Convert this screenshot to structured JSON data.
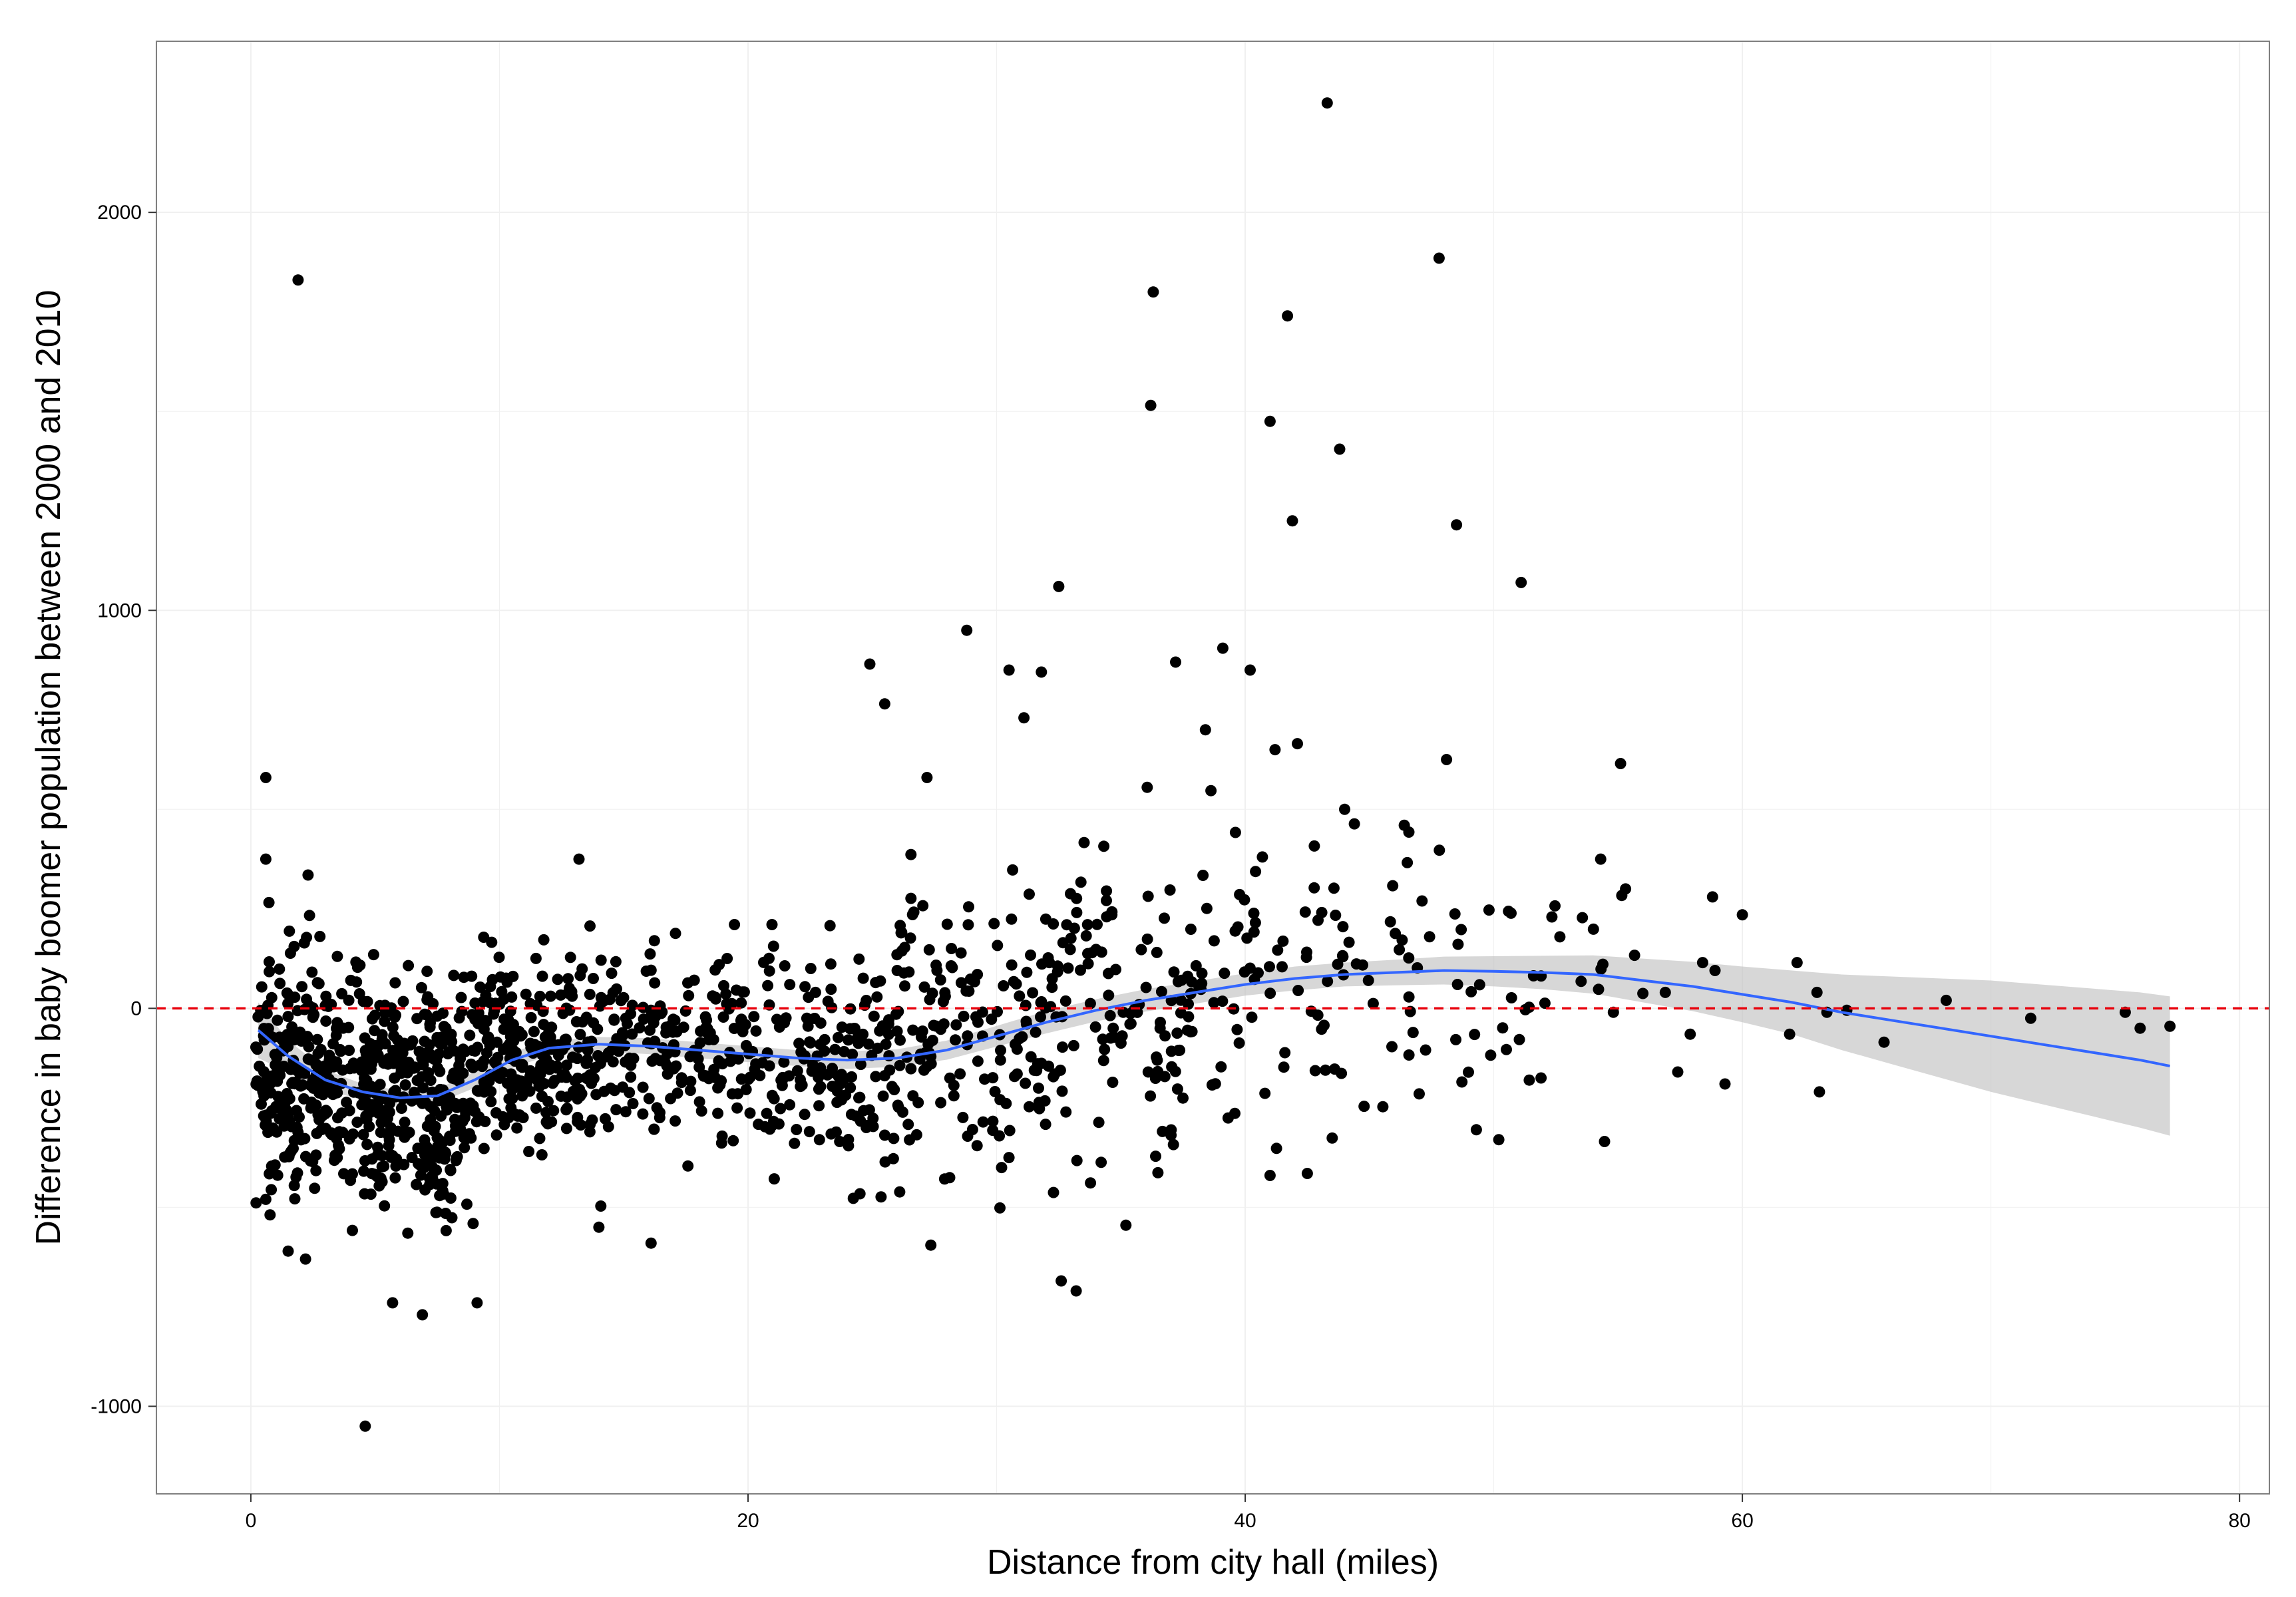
{
  "chart_data": {
    "type": "scatter",
    "title": "",
    "xlabel": "Distance from city hall (miles)",
    "ylabel": "Difference in baby boomer population between 2000 and 2010",
    "xlim": [
      -3.8,
      81.2
    ],
    "ylim": [
      -1220,
      2430
    ],
    "x_ticks": [
      0,
      20,
      40,
      60,
      80
    ],
    "y_ticks": [
      -1000,
      0,
      1000,
      2000
    ],
    "grid": true,
    "legend": "none",
    "reference_line": {
      "y": 0,
      "style": "dashed",
      "color": "#e8000b"
    },
    "colors": {
      "points": "#000000",
      "smooth_line": "#3366ff",
      "confidence_band": "#bdbdbd",
      "grid": "#f0f0f0",
      "panel_border": "#7f7f7f"
    },
    "outliers": [
      {
        "x": 0.6,
        "y": 580
      },
      {
        "x": 0.6,
        "y": 375
      },
      {
        "x": 2.3,
        "y": 335
      },
      {
        "x": 1.9,
        "y": 1830
      },
      {
        "x": 4.6,
        "y": -1050
      },
      {
        "x": 6.9,
        "y": -770
      },
      {
        "x": 9.1,
        "y": -740
      },
      {
        "x": 13.2,
        "y": 375
      },
      {
        "x": 16.1,
        "y": -590
      },
      {
        "x": 24.9,
        "y": 865
      },
      {
        "x": 25.5,
        "y": 765
      },
      {
        "x": 28.8,
        "y": 950
      },
      {
        "x": 32.5,
        "y": 1060
      },
      {
        "x": 32.6,
        "y": -685
      },
      {
        "x": 33.2,
        "y": -710
      },
      {
        "x": 30.5,
        "y": 850
      },
      {
        "x": 31.8,
        "y": 845
      },
      {
        "x": 36.3,
        "y": 1800
      },
      {
        "x": 36.2,
        "y": 1515
      },
      {
        "x": 37.2,
        "y": 870
      },
      {
        "x": 39.1,
        "y": 905
      },
      {
        "x": 40.2,
        "y": 850
      },
      {
        "x": 41.0,
        "y": 1475
      },
      {
        "x": 41.7,
        "y": 1740
      },
      {
        "x": 41.9,
        "y": 1225
      },
      {
        "x": 43.3,
        "y": 2275
      },
      {
        "x": 43.8,
        "y": 1405
      },
      {
        "x": 47.8,
        "y": 1885
      },
      {
        "x": 48.5,
        "y": 1215
      },
      {
        "x": 51.1,
        "y": 1070
      },
      {
        "x": 48.1,
        "y": 625
      },
      {
        "x": 55.1,
        "y": 615
      },
      {
        "x": 41.2,
        "y": 650
      },
      {
        "x": 42.1,
        "y": 665
      },
      {
        "x": 35.2,
        "y": -545
      },
      {
        "x": 41.0,
        "y": -420
      },
      {
        "x": 42.5,
        "y": -415
      },
      {
        "x": 58.8,
        "y": 280
      },
      {
        "x": 60.0,
        "y": 235
      },
      {
        "x": 62.2,
        "y": 115
      },
      {
        "x": 63.0,
        "y": 40
      },
      {
        "x": 63.1,
        "y": -210
      },
      {
        "x": 63.4,
        "y": -10
      },
      {
        "x": 64.2,
        "y": -5
      },
      {
        "x": 65.7,
        "y": -85
      },
      {
        "x": 68.2,
        "y": 20
      },
      {
        "x": 71.6,
        "y": -25
      },
      {
        "x": 75.4,
        "y": -10
      },
      {
        "x": 76.0,
        "y": -50
      },
      {
        "x": 77.2,
        "y": -45
      },
      {
        "x": 61.9,
        "y": -65
      },
      {
        "x": 59.3,
        "y": -190
      },
      {
        "x": 58.9,
        "y": 95
      },
      {
        "x": 58.4,
        "y": 115
      },
      {
        "x": 56.9,
        "y": 40
      },
      {
        "x": 57.9,
        "y": -65
      },
      {
        "x": 57.4,
        "y": -160
      },
      {
        "x": 55.3,
        "y": 300
      },
      {
        "x": 54.3,
        "y": 375
      },
      {
        "x": 51.9,
        "y": -175
      },
      {
        "x": 50.2,
        "y": -330
      },
      {
        "x": 49.3,
        "y": -305
      },
      {
        "x": 47.0,
        "y": -215
      },
      {
        "x": 46.4,
        "y": 460
      },
      {
        "x": 44.0,
        "y": 500
      },
      {
        "x": 38.4,
        "y": 700
      },
      {
        "x": 31.1,
        "y": 730
      },
      {
        "x": 30.2,
        "y": -400
      },
      {
        "x": 27.2,
        "y": 580
      },
      {
        "x": 14.0,
        "y": -550
      },
      {
        "x": 5.7,
        "y": -740
      },
      {
        "x": 1.5,
        "y": -610
      },
      {
        "x": 2.2,
        "y": -630
      },
      {
        "x": 0.6,
        "y": -480
      }
    ],
    "cloud": [
      {
        "x_min": 0.2,
        "x_max": 4.5,
        "n": 260,
        "center": -180,
        "spread": 150
      },
      {
        "x_min": 4.5,
        "x_max": 9.0,
        "n": 300,
        "center": -220,
        "spread": 150
      },
      {
        "x_min": 9.0,
        "x_max": 14.0,
        "n": 240,
        "center": -110,
        "spread": 115
      },
      {
        "x_min": 14.0,
        "x_max": 20.0,
        "n": 170,
        "center": -100,
        "spread": 130
      },
      {
        "x_min": 20.0,
        "x_max": 26.0,
        "n": 165,
        "center": -130,
        "spread": 140
      },
      {
        "x_min": 26.0,
        "x_max": 32.0,
        "n": 150,
        "center": -80,
        "spread": 175
      },
      {
        "x_min": 32.0,
        "x_max": 38.0,
        "n": 120,
        "center": -5,
        "spread": 195
      },
      {
        "x_min": 38.0,
        "x_max": 44.0,
        "n": 70,
        "center": 50,
        "spread": 185
      },
      {
        "x_min": 44.0,
        "x_max": 50.0,
        "n": 38,
        "center": 60,
        "spread": 175
      },
      {
        "x_min": 50.0,
        "x_max": 56.0,
        "n": 26,
        "center": 50,
        "spread": 150
      }
    ],
    "smooth": {
      "x": [
        0.3,
        1.5,
        3.0,
        4.5,
        6.0,
        7.5,
        9.0,
        10.5,
        12.0,
        14.0,
        16.0,
        18.0,
        20.0,
        22.0,
        24.0,
        26.0,
        28.0,
        30.0,
        32.0,
        34.0,
        36.0,
        38.0,
        40.0,
        42.0,
        44.0,
        46.0,
        48.0,
        50.0,
        52.0,
        54.0,
        56.0,
        58.0,
        60.0,
        62.0,
        64.0,
        66.0,
        68.0,
        70.0,
        72.0,
        74.0,
        76.0,
        77.2
      ],
      "y": [
        -55,
        -120,
        -180,
        -210,
        -225,
        -220,
        -180,
        -130,
        -100,
        -90,
        -95,
        -105,
        -115,
        -125,
        -130,
        -125,
        -105,
        -70,
        -35,
        -5,
        20,
        40,
        60,
        75,
        85,
        90,
        95,
        93,
        90,
        85,
        70,
        55,
        35,
        15,
        -10,
        -30,
        -50,
        -70,
        -90,
        -110,
        -130,
        -145
      ],
      "se": [
        70,
        40,
        25,
        20,
        18,
        18,
        20,
        20,
        18,
        18,
        20,
        20,
        20,
        20,
        22,
        22,
        24,
        26,
        28,
        28,
        28,
        28,
        28,
        30,
        30,
        32,
        35,
        38,
        42,
        48,
        55,
        62,
        70,
        80,
        95,
        110,
        125,
        140,
        150,
        160,
        170,
        175
      ]
    }
  }
}
